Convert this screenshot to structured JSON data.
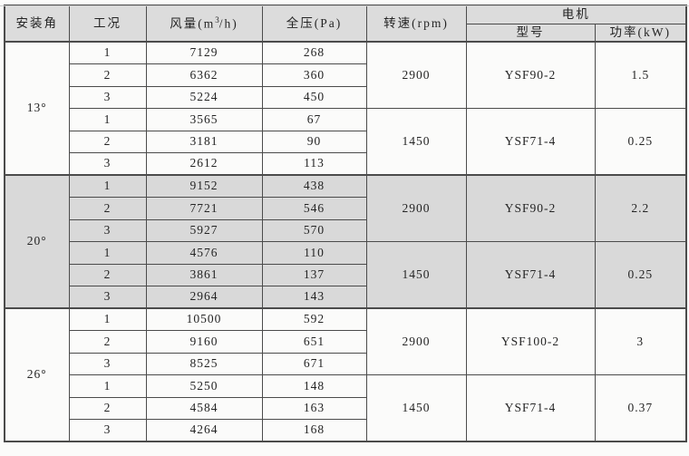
{
  "table": {
    "headers": {
      "angle": "安装角",
      "condition": "工况",
      "airflow_prefix": "风量(m",
      "airflow_sup": "3",
      "airflow_suffix": "/h)",
      "pressure": "全压(Pa)",
      "speed": "转速(rpm)",
      "motor": "电机",
      "model": "型号",
      "power": "功率(kW)"
    },
    "sections": [
      {
        "angle": "13°",
        "shaded": false,
        "groups": [
          {
            "speed": "2900",
            "model": "YSF90-2",
            "power": "1.5",
            "rows": [
              {
                "condition": "1",
                "airflow": "7129",
                "pressure": "268"
              },
              {
                "condition": "2",
                "airflow": "6362",
                "pressure": "360"
              },
              {
                "condition": "3",
                "airflow": "5224",
                "pressure": "450"
              }
            ]
          },
          {
            "speed": "1450",
            "model": "YSF71-4",
            "power": "0.25",
            "rows": [
              {
                "condition": "1",
                "airflow": "3565",
                "pressure": "67"
              },
              {
                "condition": "2",
                "airflow": "3181",
                "pressure": "90"
              },
              {
                "condition": "3",
                "airflow": "2612",
                "pressure": "113"
              }
            ]
          }
        ]
      },
      {
        "angle": "20°",
        "shaded": true,
        "groups": [
          {
            "speed": "2900",
            "model": "YSF90-2",
            "power": "2.2",
            "rows": [
              {
                "condition": "1",
                "airflow": "9152",
                "pressure": "438"
              },
              {
                "condition": "2",
                "airflow": "7721",
                "pressure": "546"
              },
              {
                "condition": "3",
                "airflow": "5927",
                "pressure": "570"
              }
            ]
          },
          {
            "speed": "1450",
            "model": "YSF71-4",
            "power": "0.25",
            "rows": [
              {
                "condition": "1",
                "airflow": "4576",
                "pressure": "110"
              },
              {
                "condition": "2",
                "airflow": "3861",
                "pressure": "137"
              },
              {
                "condition": "3",
                "airflow": "2964",
                "pressure": "143"
              }
            ]
          }
        ]
      },
      {
        "angle": "26°",
        "shaded": false,
        "groups": [
          {
            "speed": "2900",
            "model": "YSF100-2",
            "power": "3",
            "rows": [
              {
                "condition": "1",
                "airflow": "10500",
                "pressure": "592"
              },
              {
                "condition": "2",
                "airflow": "9160",
                "pressure": "651"
              },
              {
                "condition": "3",
                "airflow": "8525",
                "pressure": "671"
              }
            ]
          },
          {
            "speed": "1450",
            "model": "YSF71-4",
            "power": "0.37",
            "rows": [
              {
                "condition": "1",
                "airflow": "5250",
                "pressure": "148"
              },
              {
                "condition": "2",
                "airflow": "4584",
                "pressure": "163"
              },
              {
                "condition": "3",
                "airflow": "4264",
                "pressure": "168"
              }
            ]
          }
        ]
      }
    ]
  }
}
